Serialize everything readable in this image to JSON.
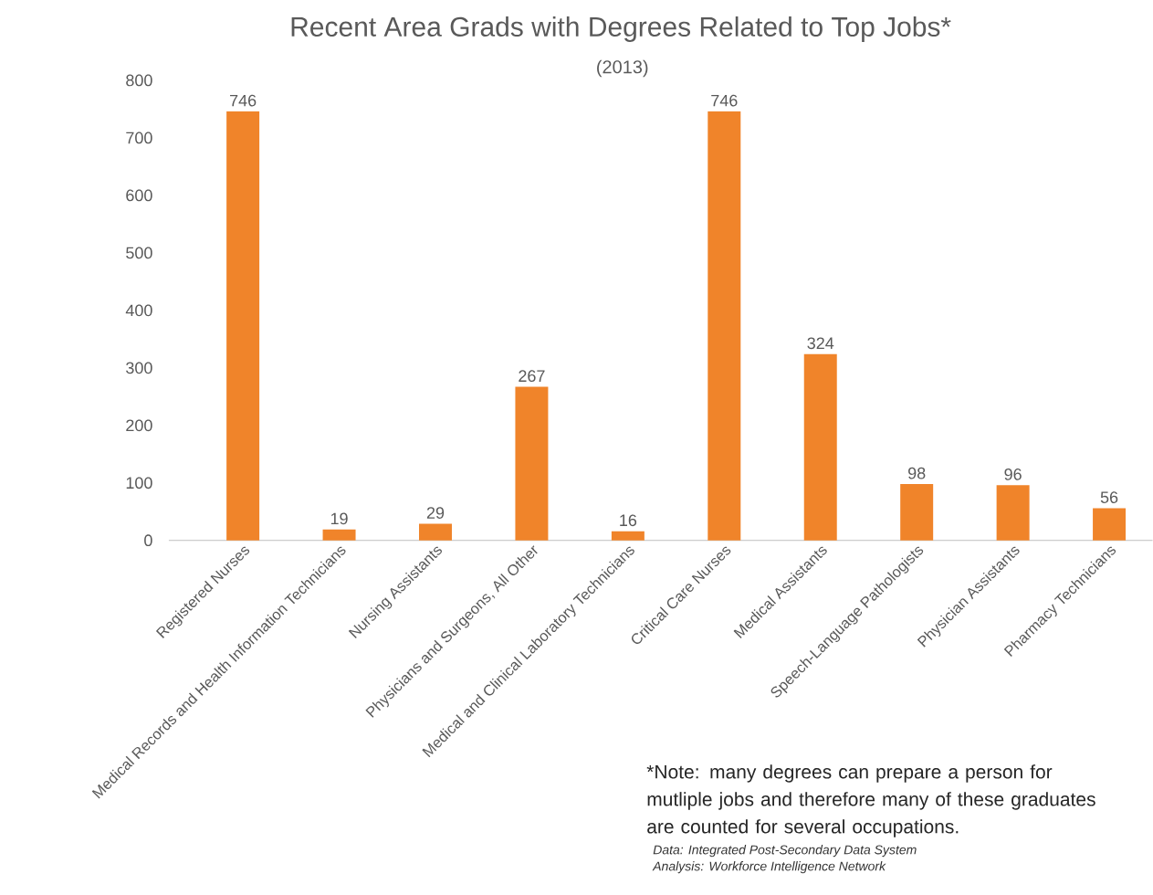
{
  "chart_data": {
    "type": "bar",
    "title": "Recent Area Grads with Degrees Related to Top Jobs*",
    "subtitle": "(2013)",
    "categories": [
      "Registered Nurses",
      "Medical Records and Health Information Technicians",
      "Nursing Assistants",
      "Physicians and Surgeons, All Other",
      "Medical and Clinical Laboratory Technicians",
      "Critical Care Nurses",
      "Medical Assistants",
      "Speech-Language Pathologists",
      "Physician Assistants",
      "Pharmacy Technicians"
    ],
    "series": [
      {
        "color": "#f0842a",
        "values": [
          746,
          19,
          29,
          267,
          16,
          746,
          324,
          98,
          96,
          56
        ]
      }
    ],
    "ylim": [
      0,
      800
    ],
    "yticks": [
      0,
      100,
      200,
      300,
      400,
      500,
      600,
      700,
      800
    ],
    "grid": false,
    "data_labels": true,
    "annotations": [
      "*Note: many degrees can prepare a person for mutliple jobs and therefore many of these graduates are counted for several occupations.",
      "Data: Integrated Post-Secondary Data System",
      "Analysis: Workforce Intelligence Network"
    ]
  }
}
